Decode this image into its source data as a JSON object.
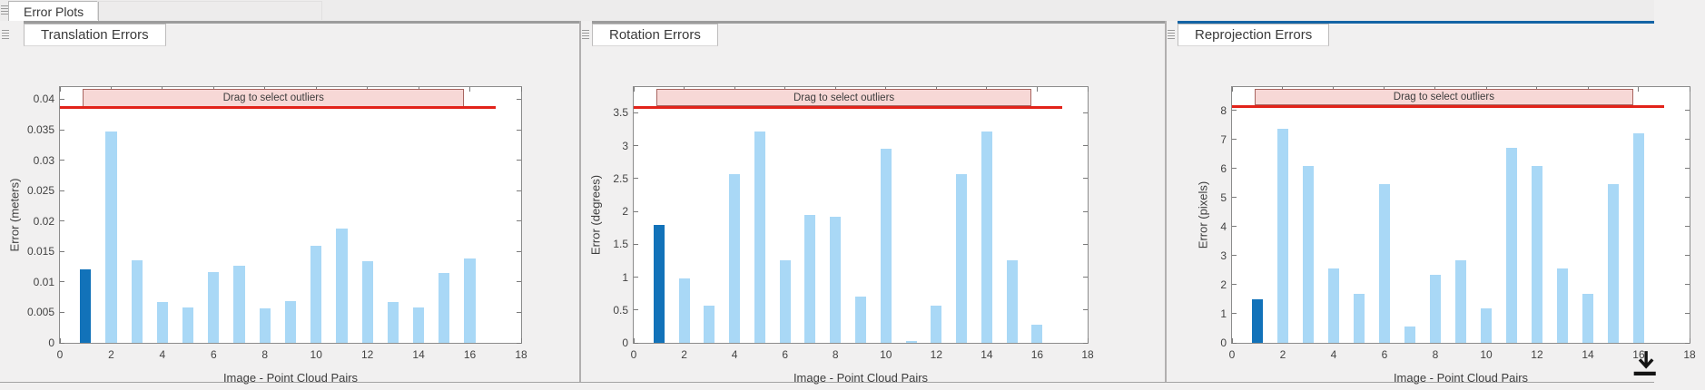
{
  "window": {
    "main_tab_label": "Error Plots"
  },
  "colors": {
    "bar_light": "#a9d8f6",
    "bar_dark": "#1272b9",
    "threshold_red": "#e2231a",
    "banner_fill": "#f7d8d6",
    "banner_border": "#a86560",
    "accent_active_blue": "#1464a5",
    "accent_inactive_gray": "#9c9c9c",
    "axis_gray": "#7a7a7a"
  },
  "icons": {
    "grip-icon": "triple horizontal drag-handle lines",
    "export-plot-icon": "black download arrow over baseline"
  },
  "chart_data": [
    {
      "type": "bar",
      "tab_label": "Translation Errors",
      "tab_active": false,
      "annotation": "Drag to select outliers",
      "ylabel": "Error (meters)",
      "xlabel": "Image - Point Cloud Pairs",
      "x": [
        1,
        2,
        3,
        4,
        5,
        6,
        7,
        8,
        9,
        10,
        11,
        12,
        13,
        14,
        15,
        16
      ],
      "values": [
        0.012,
        0.0347,
        0.0136,
        0.0067,
        0.0058,
        0.0116,
        0.0127,
        0.0057,
        0.0068,
        0.016,
        0.0188,
        0.0134,
        0.0067,
        0.0058,
        0.0115,
        0.0139
      ],
      "highlight_index": 0,
      "yticks": [
        "0",
        "0.005",
        "0.01",
        "0.015",
        "0.02",
        "0.025",
        "0.03",
        "0.035",
        "0.04"
      ],
      "xticks": [
        "0",
        "2",
        "4",
        "6",
        "8",
        "10",
        "12",
        "14",
        "16",
        "18"
      ],
      "ylim": [
        0,
        0.042
      ],
      "xlim": [
        0,
        18
      ],
      "threshold": 0.0386,
      "threshold_x_extent": [
        0,
        17
      ],
      "banner_x_extent": [
        0.9,
        15.7
      ],
      "grid": false,
      "clipped_right": false
    },
    {
      "type": "bar",
      "tab_label": "Rotation Errors",
      "tab_active": false,
      "annotation": "Drag to select outliers",
      "ylabel": "Error (degrees)",
      "xlabel": "Image - Point Cloud Pairs",
      "x": [
        1,
        2,
        3,
        4,
        5,
        6,
        7,
        8,
        9,
        10,
        11,
        12,
        13,
        14,
        15,
        16
      ],
      "values": [
        1.8,
        0.98,
        0.56,
        2.56,
        3.22,
        1.25,
        1.95,
        1.92,
        0.71,
        2.95,
        0.03,
        0.56,
        2.56,
        3.22,
        1.25,
        0.27
      ],
      "highlight_index": 0,
      "yticks": [
        "0",
        "0.5",
        "1",
        "1.5",
        "2",
        "2.5",
        "3",
        "3.5"
      ],
      "xticks": [
        "0",
        "2",
        "4",
        "6",
        "8",
        "10",
        "12",
        "14",
        "16",
        "18"
      ],
      "ylim": [
        0,
        3.89
      ],
      "xlim": [
        0,
        18
      ],
      "threshold": 3.58,
      "threshold_x_extent": [
        0,
        17
      ],
      "banner_x_extent": [
        0.9,
        15.7
      ],
      "grid": false,
      "clipped_right": false
    },
    {
      "type": "bar",
      "tab_label": "Reprojection Errors",
      "tab_active": true,
      "annotation": "Drag to select outliers",
      "ylabel": "Error (pixels)",
      "xlabel": "Image - Point Cloud Pairs",
      "x": [
        1,
        2,
        3,
        4,
        5,
        6,
        7,
        8,
        9,
        10,
        11,
        12,
        13,
        14,
        15,
        16
      ],
      "values": [
        1.5,
        7.35,
        6.1,
        2.55,
        1.7,
        5.45,
        0.55,
        2.35,
        2.85,
        1.2,
        6.7,
        6.1,
        2.55,
        1.7,
        5.45,
        7.2
      ],
      "highlight_index": 0,
      "yticks": [
        "0",
        "1",
        "2",
        "3",
        "4",
        "5",
        "6",
        "7",
        "8"
      ],
      "xticks": [
        "0",
        "2",
        "4",
        "6",
        "8",
        "10",
        "12",
        "14",
        "16",
        "18"
      ],
      "ylim": [
        0,
        8.8
      ],
      "xlim": [
        0,
        18
      ],
      "threshold": 8.13,
      "threshold_x_extent": [
        0,
        17
      ],
      "banner_x_extent": [
        0.9,
        15.7
      ],
      "grid": false,
      "clipped_right": true
    }
  ]
}
